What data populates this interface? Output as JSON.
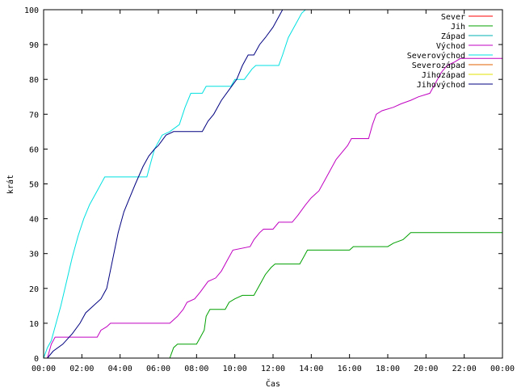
{
  "chart_data": {
    "type": "line",
    "title": "",
    "xlabel": "Čas",
    "ylabel": "krát",
    "xlim": [
      0,
      24
    ],
    "ylim": [
      0,
      100
    ],
    "x_tick_labels": [
      "00:00",
      "02:00",
      "04:00",
      "06:00",
      "08:00",
      "10:00",
      "12:00",
      "14:00",
      "16:00",
      "18:00",
      "20:00",
      "22:00",
      "00:00"
    ],
    "y_ticks": [
      0,
      10,
      20,
      30,
      40,
      50,
      60,
      70,
      80,
      90,
      100
    ],
    "grid": false,
    "legend_position": "top-right",
    "series": [
      {
        "name": "Sever",
        "color": "#ff0000",
        "points": []
      },
      {
        "name": "Jih",
        "color": "#00a000",
        "points": [
          [
            6.6,
            0
          ],
          [
            6.8,
            3
          ],
          [
            7.0,
            4
          ],
          [
            8.0,
            4
          ],
          [
            8.2,
            6
          ],
          [
            8.4,
            8
          ],
          [
            8.5,
            12
          ],
          [
            8.7,
            14
          ],
          [
            9.5,
            14
          ],
          [
            9.7,
            16
          ],
          [
            10.0,
            17
          ],
          [
            10.4,
            18
          ],
          [
            11.0,
            18
          ],
          [
            11.2,
            20
          ],
          [
            11.4,
            22
          ],
          [
            11.6,
            24
          ],
          [
            11.9,
            26
          ],
          [
            12.1,
            27
          ],
          [
            13.4,
            27
          ],
          [
            13.6,
            29
          ],
          [
            13.8,
            31
          ],
          [
            16.0,
            31
          ],
          [
            16.2,
            32
          ],
          [
            18.0,
            32
          ],
          [
            18.3,
            33
          ],
          [
            18.8,
            34
          ],
          [
            19.0,
            35
          ],
          [
            19.2,
            36
          ],
          [
            24.0,
            36
          ]
        ]
      },
      {
        "name": "Západ",
        "color": "#00b0b0",
        "points": []
      },
      {
        "name": "Východ",
        "color": "#c000c0",
        "points": [
          [
            0.2,
            0
          ],
          [
            0.4,
            4
          ],
          [
            0.6,
            6
          ],
          [
            2.8,
            6
          ],
          [
            3.0,
            8
          ],
          [
            3.3,
            9
          ],
          [
            3.5,
            10
          ],
          [
            6.6,
            10
          ],
          [
            6.8,
            11
          ],
          [
            7.0,
            12
          ],
          [
            7.3,
            14
          ],
          [
            7.5,
            16
          ],
          [
            7.9,
            17
          ],
          [
            8.2,
            19
          ],
          [
            8.6,
            22
          ],
          [
            9.0,
            23
          ],
          [
            9.3,
            25
          ],
          [
            9.6,
            28
          ],
          [
            9.9,
            31
          ],
          [
            10.8,
            32
          ],
          [
            11.0,
            34
          ],
          [
            11.3,
            36
          ],
          [
            11.5,
            37
          ],
          [
            12.0,
            37
          ],
          [
            12.3,
            39
          ],
          [
            13.0,
            39
          ],
          [
            13.3,
            41
          ],
          [
            13.7,
            44
          ],
          [
            14.0,
            46
          ],
          [
            14.4,
            48
          ],
          [
            14.7,
            51
          ],
          [
            15.0,
            54
          ],
          [
            15.3,
            57
          ],
          [
            15.6,
            59
          ],
          [
            15.9,
            61
          ],
          [
            16.1,
            63
          ],
          [
            17.0,
            63
          ],
          [
            17.2,
            67
          ],
          [
            17.4,
            70
          ],
          [
            17.7,
            71
          ],
          [
            18.3,
            72
          ],
          [
            18.7,
            73
          ],
          [
            19.2,
            74
          ],
          [
            19.6,
            75
          ],
          [
            20.2,
            76
          ],
          [
            20.5,
            79
          ],
          [
            20.8,
            82
          ],
          [
            21.1,
            84
          ],
          [
            21.5,
            85
          ],
          [
            21.8,
            86
          ],
          [
            24.0,
            86
          ]
        ]
      },
      {
        "name": "Severovýchod",
        "color": "#00e0e0",
        "points": [
          [
            0,
            0
          ],
          [
            0.2,
            3
          ],
          [
            0.4,
            5
          ],
          [
            0.6,
            9
          ],
          [
            0.9,
            15
          ],
          [
            1.2,
            22
          ],
          [
            1.5,
            29
          ],
          [
            1.8,
            35
          ],
          [
            2.1,
            40
          ],
          [
            2.4,
            44
          ],
          [
            2.8,
            48
          ],
          [
            3.2,
            52
          ],
          [
            5.4,
            52
          ],
          [
            5.6,
            56
          ],
          [
            5.8,
            60
          ],
          [
            6.2,
            64
          ],
          [
            6.6,
            65
          ],
          [
            7.1,
            67
          ],
          [
            7.4,
            72
          ],
          [
            7.7,
            76
          ],
          [
            8.3,
            76
          ],
          [
            8.5,
            78
          ],
          [
            9.8,
            78
          ],
          [
            10.0,
            80
          ],
          [
            10.5,
            80
          ],
          [
            10.9,
            83
          ],
          [
            11.1,
            84
          ],
          [
            12.3,
            84
          ],
          [
            12.5,
            87
          ],
          [
            12.8,
            92
          ],
          [
            13.2,
            96
          ],
          [
            13.5,
            99
          ],
          [
            13.7,
            100
          ]
        ]
      },
      {
        "name": "Severozápad",
        "color": "#e06000",
        "points": []
      },
      {
        "name": "Jihozápad",
        "color": "#e0e000",
        "points": []
      },
      {
        "name": "Jihovýchod",
        "color": "#000080",
        "points": [
          [
            0.2,
            0
          ],
          [
            0.5,
            2
          ],
          [
            1.0,
            4
          ],
          [
            1.5,
            7
          ],
          [
            1.9,
            10
          ],
          [
            2.2,
            13
          ],
          [
            2.6,
            15
          ],
          [
            3.0,
            17
          ],
          [
            3.3,
            20
          ],
          [
            3.6,
            28
          ],
          [
            3.9,
            36
          ],
          [
            4.2,
            42
          ],
          [
            4.5,
            46
          ],
          [
            4.8,
            50
          ],
          [
            5.2,
            55
          ],
          [
            5.5,
            58
          ],
          [
            5.8,
            60
          ],
          [
            6.0,
            61
          ],
          [
            6.4,
            64
          ],
          [
            6.8,
            65
          ],
          [
            8.3,
            65
          ],
          [
            8.6,
            68
          ],
          [
            8.9,
            70
          ],
          [
            9.3,
            74
          ],
          [
            9.7,
            77
          ],
          [
            10.1,
            80
          ],
          [
            10.4,
            84
          ],
          [
            10.7,
            87
          ],
          [
            11.0,
            87
          ],
          [
            11.3,
            90
          ],
          [
            11.6,
            92
          ],
          [
            12.0,
            95
          ],
          [
            12.3,
            98
          ],
          [
            12.5,
            100
          ]
        ]
      }
    ]
  }
}
